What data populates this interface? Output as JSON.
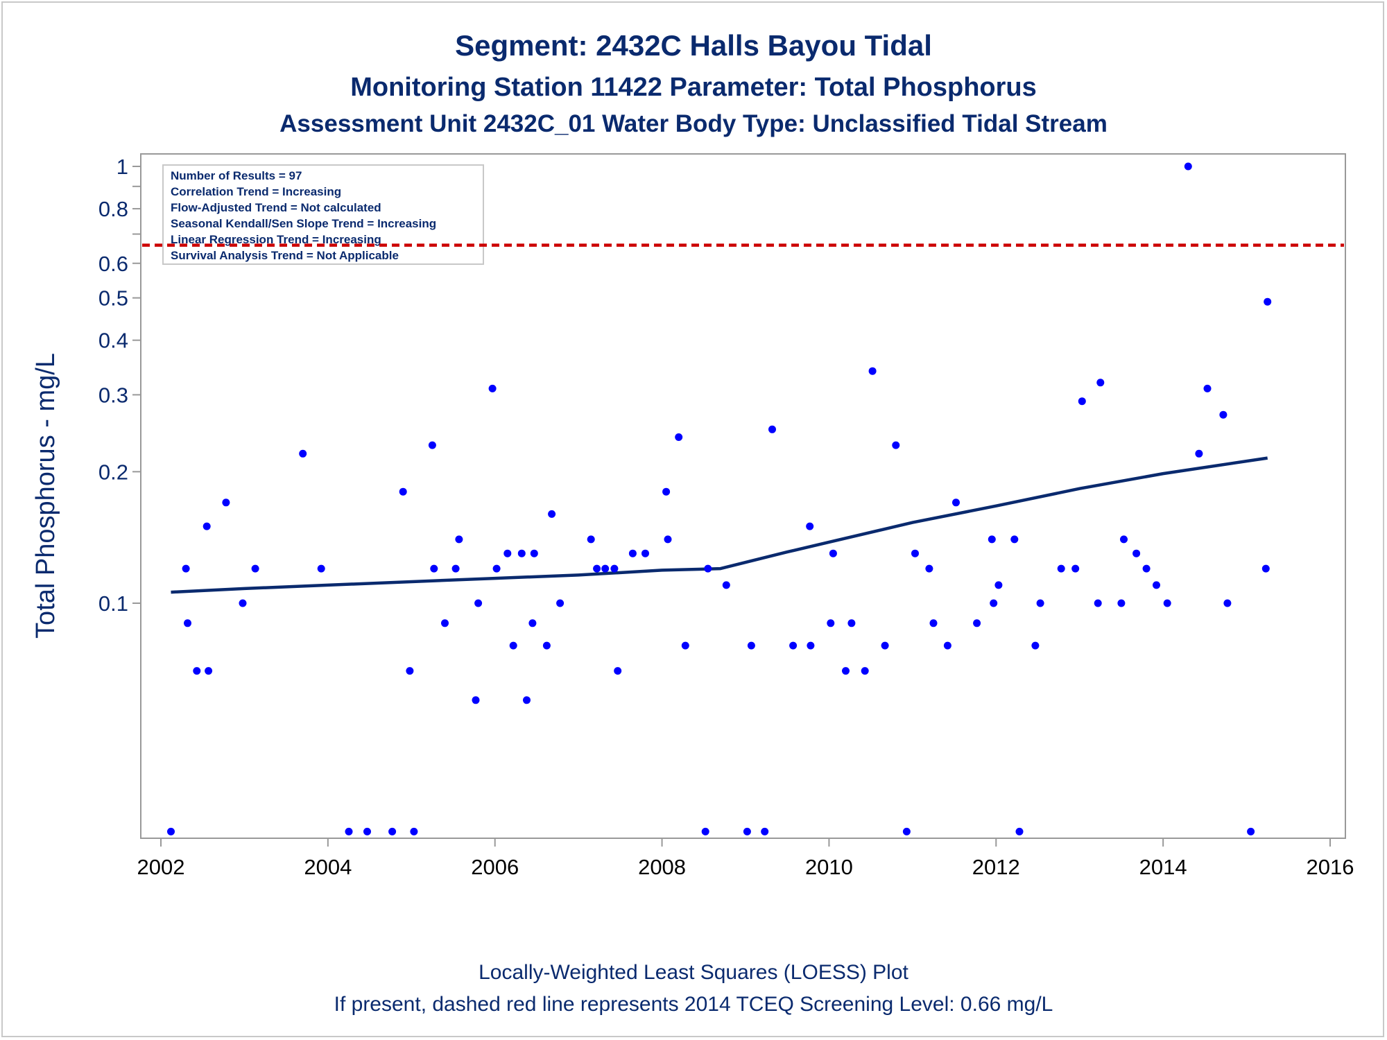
{
  "chart_data": {
    "type": "scatter",
    "title": "Segment: 2432C  Halls Bayou Tidal",
    "subtitle": "Monitoring Station 11422 Parameter: Total Phosphorus",
    "subtitle2": "Assessment Unit 2432C_01   Water Body Type: Unclassified Tidal Stream",
    "ylabel": "Total Phosphorus - mg/L",
    "xlabel": "",
    "footnotes": [
      "Locally-Weighted Least Squares (LOESS) Plot",
      "If present, dashed red line represents 2014 TCEQ Screening Level: 0.66 mg/L"
    ],
    "y_scale": "log",
    "ylim": [
      0.03,
      1.0
    ],
    "xlim": [
      2002,
      2016
    ],
    "x_ticks": [
      "2002",
      "2004",
      "2006",
      "2008",
      "2010",
      "2012",
      "2014",
      "2016"
    ],
    "y_ticks": [
      {
        "value": 1.0,
        "label": "1"
      },
      {
        "value": 0.8,
        "label": "0.8"
      },
      {
        "value": 0.6,
        "label": "0.6"
      },
      {
        "value": 0.5,
        "label": "0.5"
      },
      {
        "value": 0.4,
        "label": "0.4"
      },
      {
        "value": 0.3,
        "label": "0.3"
      },
      {
        "value": 0.2,
        "label": "0.2"
      },
      {
        "value": 0.1,
        "label": "0.1"
      }
    ],
    "y_minor_ticks": [
      0.9,
      0.7
    ],
    "stats_box": [
      "Number of Results = 97",
      "Correlation Trend = Increasing",
      "Flow-Adjusted Trend = Not calculated",
      "Seasonal Kendall/Sen Slope Trend = Increasing",
      "Linear Regression Trend = Increasing",
      "Survival Analysis Trend = Not Applicable"
    ],
    "screening_level": 0.66,
    "colors": {
      "points": "#0000ff",
      "loess": "#0a2a6e",
      "screening": "#cc0000",
      "text": "#0a2a6e",
      "axis": "#999999"
    },
    "series": [
      {
        "values": [
          [
            2002.12,
            0.03
          ],
          [
            2002.3,
            0.12
          ],
          [
            2002.32,
            0.09
          ],
          [
            2002.43,
            0.07
          ],
          [
            2002.55,
            0.15
          ],
          [
            2002.57,
            0.07
          ],
          [
            2002.78,
            0.17
          ],
          [
            2002.98,
            0.1
          ],
          [
            2003.13,
            0.12
          ],
          [
            2003.7,
            0.22
          ],
          [
            2003.92,
            0.12
          ],
          [
            2004.25,
            0.03
          ],
          [
            2004.47,
            0.03
          ],
          [
            2004.77,
            0.03
          ],
          [
            2004.9,
            0.18
          ],
          [
            2004.98,
            0.07
          ],
          [
            2005.03,
            0.03
          ],
          [
            2005.25,
            0.23
          ],
          [
            2005.27,
            0.12
          ],
          [
            2005.4,
            0.09
          ],
          [
            2005.53,
            0.12
          ],
          [
            2005.57,
            0.14
          ],
          [
            2005.77,
            0.06
          ],
          [
            2005.8,
            0.1
          ],
          [
            2005.97,
            0.31
          ],
          [
            2006.02,
            0.12
          ],
          [
            2006.15,
            0.13
          ],
          [
            2006.22,
            0.08
          ],
          [
            2006.32,
            0.13
          ],
          [
            2006.38,
            0.06
          ],
          [
            2006.45,
            0.09
          ],
          [
            2006.47,
            0.13
          ],
          [
            2006.62,
            0.08
          ],
          [
            2006.68,
            0.16
          ],
          [
            2006.78,
            0.1
          ],
          [
            2007.15,
            0.14
          ],
          [
            2007.22,
            0.12
          ],
          [
            2007.32,
            0.12
          ],
          [
            2007.43,
            0.12
          ],
          [
            2007.47,
            0.07
          ],
          [
            2007.65,
            0.13
          ],
          [
            2007.8,
            0.13
          ],
          [
            2008.05,
            0.18
          ],
          [
            2008.07,
            0.14
          ],
          [
            2008.2,
            0.24
          ],
          [
            2008.28,
            0.08
          ],
          [
            2008.52,
            0.03
          ],
          [
            2008.55,
            0.12
          ],
          [
            2008.77,
            0.11
          ],
          [
            2009.02,
            0.03
          ],
          [
            2009.07,
            0.08
          ],
          [
            2009.23,
            0.03
          ],
          [
            2009.32,
            0.25
          ],
          [
            2009.57,
            0.08
          ],
          [
            2009.77,
            0.15
          ],
          [
            2009.78,
            0.08
          ],
          [
            2010.02,
            0.09
          ],
          [
            2010.05,
            0.13
          ],
          [
            2010.2,
            0.07
          ],
          [
            2010.27,
            0.09
          ],
          [
            2010.43,
            0.07
          ],
          [
            2010.52,
            0.34
          ],
          [
            2010.67,
            0.08
          ],
          [
            2010.8,
            0.23
          ],
          [
            2010.93,
            0.03
          ],
          [
            2011.03,
            0.13
          ],
          [
            2011.2,
            0.12
          ],
          [
            2011.25,
            0.09
          ],
          [
            2011.42,
            0.08
          ],
          [
            2011.52,
            0.17
          ],
          [
            2011.77,
            0.09
          ],
          [
            2011.95,
            0.14
          ],
          [
            2011.97,
            0.1
          ],
          [
            2012.03,
            0.11
          ],
          [
            2012.22,
            0.14
          ],
          [
            2012.28,
            0.03
          ],
          [
            2012.47,
            0.08
          ],
          [
            2012.53,
            0.1
          ],
          [
            2012.78,
            0.12
          ],
          [
            2012.95,
            0.12
          ],
          [
            2013.03,
            0.29
          ],
          [
            2013.22,
            0.1
          ],
          [
            2013.25,
            0.32
          ],
          [
            2013.5,
            0.1
          ],
          [
            2013.53,
            0.14
          ],
          [
            2013.68,
            0.13
          ],
          [
            2013.8,
            0.12
          ],
          [
            2013.92,
            0.11
          ],
          [
            2014.05,
            0.1
          ],
          [
            2014.3,
            1.0
          ],
          [
            2014.43,
            0.22
          ],
          [
            2014.53,
            0.31
          ],
          [
            2014.72,
            0.27
          ],
          [
            2014.77,
            0.1
          ],
          [
            2015.05,
            0.03
          ],
          [
            2015.23,
            0.12
          ],
          [
            2015.25,
            0.49
          ]
        ]
      },
      {
        "values": [
          [
            2002.12,
            0.106
          ],
          [
            2003.0,
            0.108
          ],
          [
            2004.0,
            0.11
          ],
          [
            2005.0,
            0.112
          ],
          [
            2006.0,
            0.114
          ],
          [
            2007.0,
            0.116
          ],
          [
            2008.0,
            0.119
          ],
          [
            2008.7,
            0.12
          ],
          [
            2009.0,
            0.124
          ],
          [
            2009.5,
            0.131
          ],
          [
            2010.0,
            0.138
          ],
          [
            2011.0,
            0.153
          ],
          [
            2012.0,
            0.167
          ],
          [
            2013.0,
            0.183
          ],
          [
            2014.0,
            0.198
          ],
          [
            2015.25,
            0.215
          ]
        ]
      }
    ]
  }
}
